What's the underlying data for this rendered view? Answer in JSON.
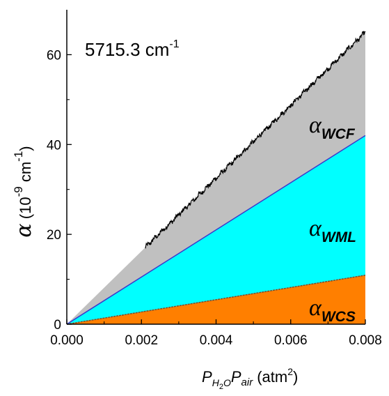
{
  "chart_data": {
    "type": "area",
    "annotation": "5715.3 cm",
    "annotation_sup": "-1",
    "xlabel": {
      "p1": "P",
      "s1": "H",
      "s1b": "2",
      "s1c": "O",
      "p2": "P",
      "s2": "air",
      "unit": "(atm",
      "unit_sup": "2",
      "unit_end": ")"
    },
    "ylabel": {
      "sym": "α",
      "unit_a": " (10",
      "unit_sup": "-9",
      "unit_b": " cm",
      "unit_sup2": "-1",
      "unit_c": ")"
    },
    "xlim": [
      0,
      0.008
    ],
    "ylim": [
      0,
      70
    ],
    "x_ticks": [
      "0.000",
      "0.002",
      "0.004",
      "0.006",
      "0.008"
    ],
    "y_ticks": [
      "0",
      "20",
      "40",
      "60"
    ],
    "series": [
      {
        "name": "α",
        "sub": "WCS",
        "color": "#ff7f00",
        "line_color": "#7f4a2a",
        "x": [
          0,
          0.008
        ],
        "y": [
          0,
          10.9
        ]
      },
      {
        "name": "α",
        "sub": "WML",
        "color": "#00ffff",
        "line_color": "#3a3acc",
        "x": [
          0,
          0.008
        ],
        "y": [
          0,
          42.0
        ]
      },
      {
        "name": "α",
        "sub": "WCF",
        "color": "#c0c0c0",
        "line_color": "#000000",
        "x": [
          0,
          0.008
        ],
        "y": [
          0,
          65.0
        ]
      }
    ],
    "measured_line": {
      "x_start": 0.0021,
      "x_end": 0.008,
      "y_end": 64.8,
      "color": "#000000"
    },
    "colors": {
      "axis": "#000000",
      "background": "#ffffff"
    }
  }
}
